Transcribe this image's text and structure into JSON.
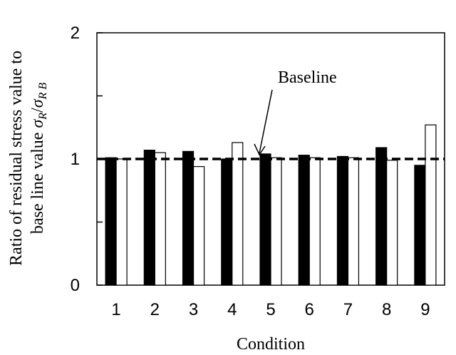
{
  "chart_data": {
    "type": "bar",
    "categories": [
      "1",
      "2",
      "3",
      "4",
      "5",
      "6",
      "7",
      "8",
      "9"
    ],
    "series": [
      {
        "color": "#000000",
        "values": [
          1.01,
          1.07,
          1.06,
          1.0,
          1.04,
          1.03,
          1.02,
          1.09,
          0.95
        ]
      },
      {
        "color": "#ffffff",
        "values": [
          1.0,
          1.05,
          0.94,
          1.13,
          1.01,
          1.01,
          1.01,
          0.99,
          1.27
        ]
      }
    ],
    "xlabel": "Condition",
    "ylabel_line1": "Ratio of residual stress value to",
    "ylabel_line2": "base line value",
    "ylabel_symbol": "σR/σR B",
    "ylim": [
      0,
      2
    ],
    "yticks": [
      "0",
      "1",
      "2"
    ],
    "baseline": {
      "value": 1.0,
      "label": "Baseline",
      "style": "dashed"
    },
    "grid": false,
    "legend": "none"
  }
}
